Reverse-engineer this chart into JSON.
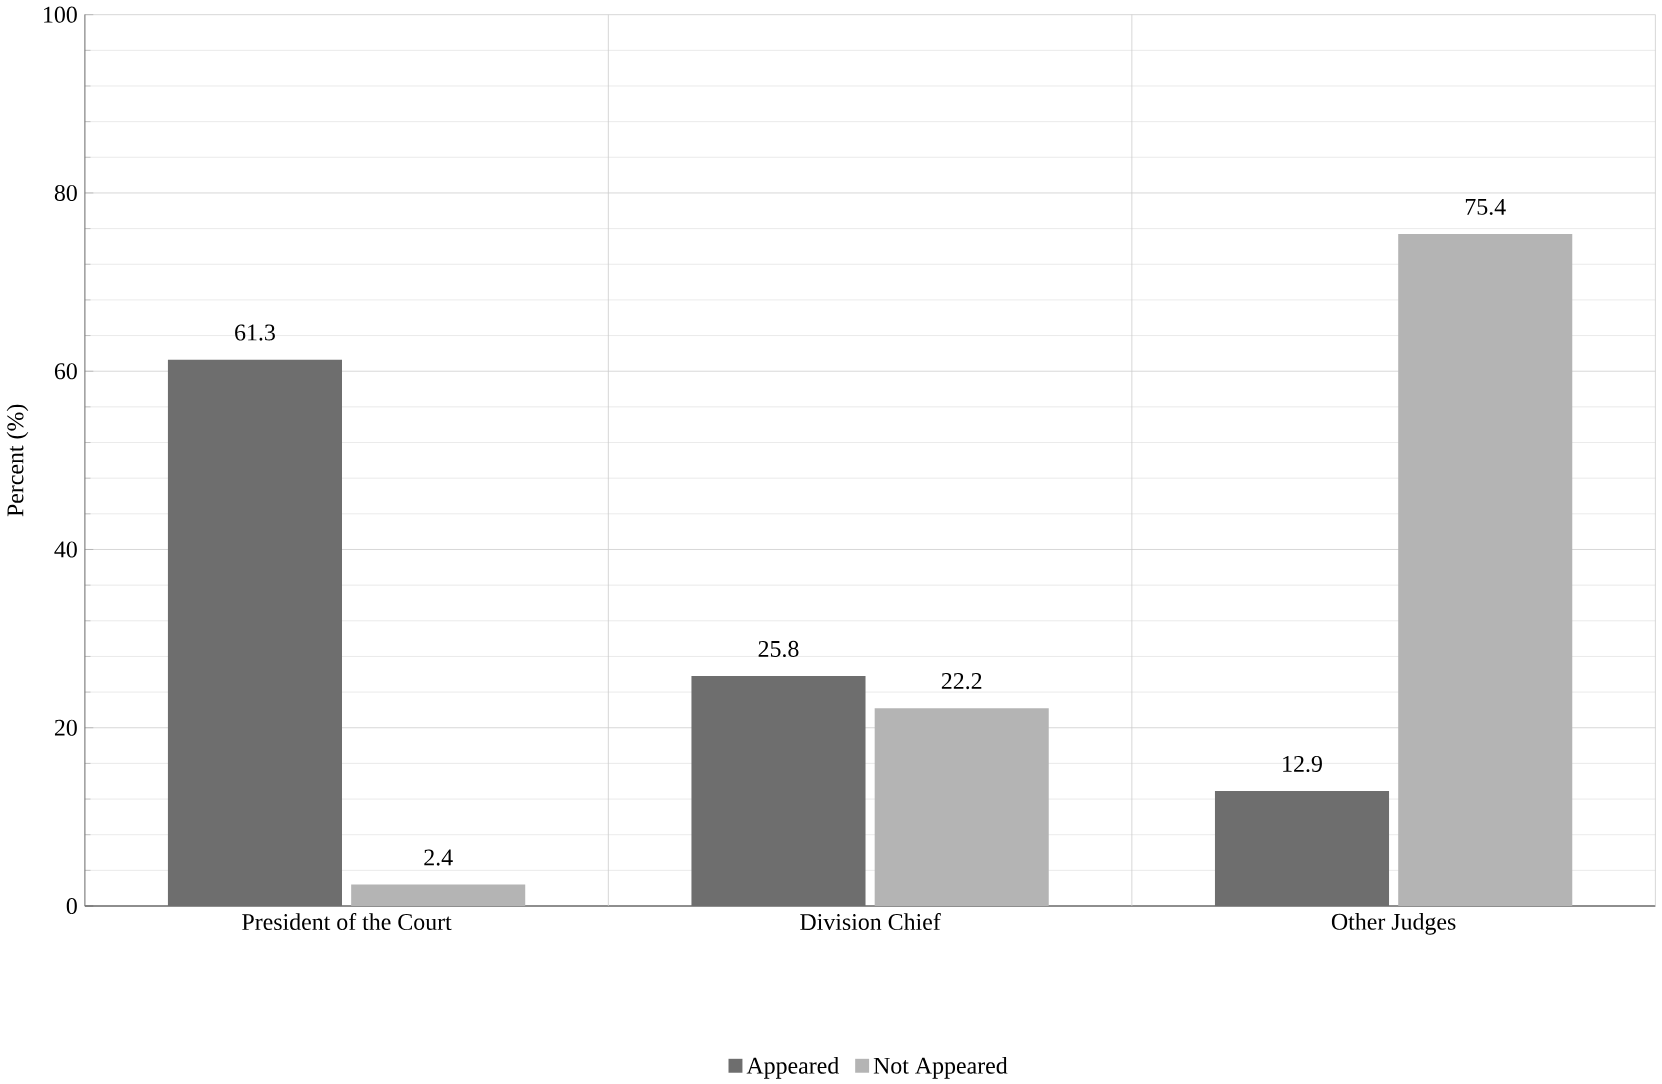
{
  "chart_data": {
    "type": "bar",
    "ylabel": "Percent (%)",
    "categories": [
      "President of the Court",
      "Division Chief",
      "Other Judges"
    ],
    "series": [
      {
        "name": "Appeared",
        "color": "#6e6e6e",
        "values": [
          61.3,
          25.8,
          12.9
        ]
      },
      {
        "name": "Not Appeared",
        "color": "#b4b4b4",
        "values": [
          2.4,
          22.2,
          75.4
        ]
      }
    ],
    "ylim": [
      0,
      100
    ],
    "yticks": [
      0,
      20,
      40,
      60,
      80,
      100
    ],
    "grid": true,
    "legend": "bottom",
    "data_labels": true
  }
}
